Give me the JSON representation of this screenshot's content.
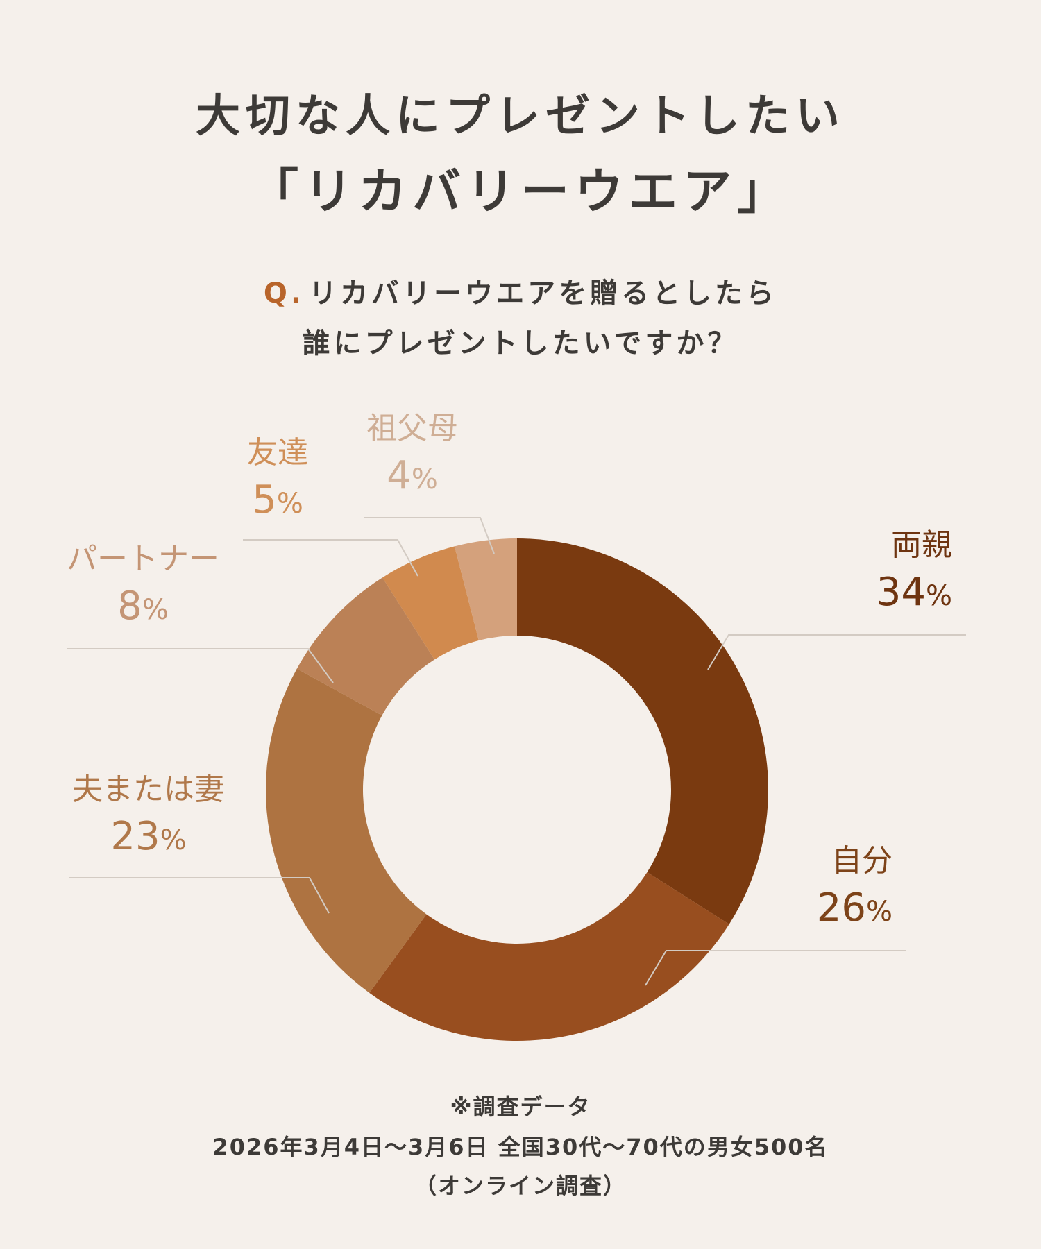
{
  "header": {
    "title_line1": "大切な人にプレゼントしたい",
    "title_line2": "「リカバリーウエア」"
  },
  "question": {
    "prefix": "Q.",
    "line1": "リカバリーウエアを贈るとしたら",
    "line2": "誰にプレゼントしたいですか？"
  },
  "chart_data": {
    "type": "pie",
    "donut": true,
    "unit": "%",
    "slices": [
      {
        "label": "両親",
        "value": 34,
        "color": "#7a3a10"
      },
      {
        "label": "自分",
        "value": 26,
        "color": "#984e1f"
      },
      {
        "label": "夫または妻",
        "value": 23,
        "color": "#ae7341"
      },
      {
        "label": "パートナー",
        "value": 8,
        "color": "#bb8156"
      },
      {
        "label": "友達",
        "value": 5,
        "color": "#d18a4e"
      },
      {
        "label": "祖父母",
        "value": 4,
        "color": "#d4a17c"
      }
    ]
  },
  "footer": {
    "line1": "※調査データ",
    "line2": "2026年3月4日〜3月6日 全国30代〜70代の男女500名",
    "line3": "（オンライン調査）"
  }
}
